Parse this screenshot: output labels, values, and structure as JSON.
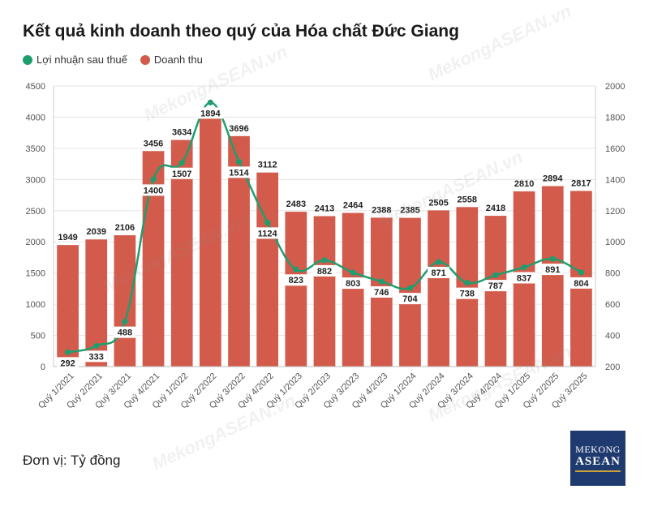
{
  "title": "Kết quả kinh doanh theo quý của Hóa chất Đức Giang",
  "unit": "Đơn vị: Tỷ đồng",
  "watermark": "MekongASEAN.vn",
  "logo": {
    "top": "MEKONG",
    "bottom": "ASEAN"
  },
  "colors": {
    "bar": "#d25b4b",
    "line": "#1e9e6e",
    "grid": "#e6e6e6",
    "axis": "#888888"
  },
  "chart_data": {
    "type": "bar",
    "categories": [
      "Quý 1/2021",
      "Quý 2/2021",
      "Quý 3/2021",
      "Quý 4/2021",
      "Quý 1/2022",
      "Quý 2/2022",
      "Quý 3/2022",
      "Quý 4/2022",
      "Quý 1/2023",
      "Quý 2/2023",
      "Quý 3/2023",
      "Quý 4/2023",
      "Quý 1/2024",
      "Quý 2/2024",
      "Quý 3/2024",
      "Quý 4/2024",
      "Quý 1/2025",
      "Quý 2/2025",
      "Quý 3/2025"
    ],
    "series": [
      {
        "name": "Doanh thu",
        "type": "bar",
        "axis": "left",
        "values": [
          1949,
          2039,
          2106,
          3456,
          3634,
          3999,
          3696,
          3112,
          2483,
          2413,
          2464,
          2388,
          2385,
          2505,
          2558,
          2418,
          2810,
          2894,
          2817
        ]
      },
      {
        "name": "Lợi nhuận sau thuế",
        "type": "line",
        "axis": "right",
        "values": [
          292,
          333,
          488,
          1400,
          1507,
          1894,
          1514,
          1124,
          823,
          882,
          803,
          746,
          704,
          871,
          738,
          787,
          837,
          891,
          804
        ]
      }
    ],
    "bar_labels": [
      "1949",
      "2039",
      "2106",
      "3456",
      "3634",
      "",
      "3696",
      "3112",
      "2483",
      "2413",
      "2464",
      "2388",
      "2385",
      "2505",
      "2558",
      "2418",
      "2810",
      "2894",
      "2817"
    ],
    "line_labels": [
      "292",
      "333",
      "488",
      "1400",
      "1507",
      "1894",
      "1514",
      "1124",
      "823",
      "882",
      "803",
      "746",
      "704",
      "871",
      "738",
      "787",
      "837",
      "891",
      "804"
    ],
    "yleft": {
      "min": 0,
      "max": 4500,
      "ticks": [
        "0",
        "500",
        "1000",
        "1500",
        "2000",
        "2500",
        "3000",
        "3500",
        "4000",
        "4500"
      ]
    },
    "yright": {
      "min": 200,
      "max": 2000,
      "ticks": [
        "200",
        "400",
        "600",
        "800",
        "1000",
        "1200",
        "1400",
        "1600",
        "1800",
        "2000"
      ]
    },
    "legend_position": "top-left",
    "grid": true
  }
}
